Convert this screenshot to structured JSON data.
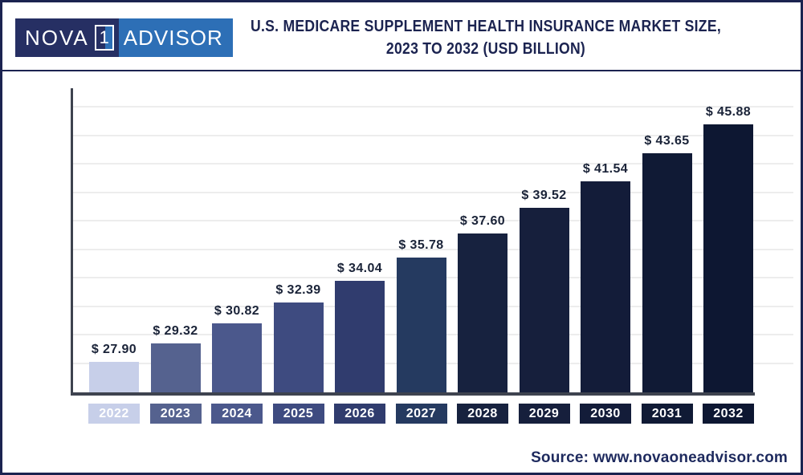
{
  "header": {
    "logo": {
      "part1": "NOVA",
      "part2": "1",
      "part3": "ADVISOR"
    },
    "title_lines": [
      "U.S. MEDICARE SUPPLEMENT HEALTH INSURANCE MARKET SIZE,",
      "2023 TO 2032 (USD BILLION)"
    ]
  },
  "footer": {
    "source": "Source: www.novaoneadvisor.com"
  },
  "colors": {
    "navy": "#1b2350",
    "logo_navy": "#262f63",
    "logo_blue": "#2d6fb6",
    "axis": "#3e434f",
    "grid": "#ededed",
    "value_label": "#1a2338"
  },
  "chart_data": {
    "type": "bar",
    "title": "U.S. Medicare Supplement Health Insurance Market Size, 2023 to 2032 (USD Billion)",
    "unit": "USD Billion",
    "categories": [
      "2022",
      "2023",
      "2024",
      "2025",
      "2026",
      "2027",
      "2028",
      "2029",
      "2030",
      "2031",
      "2032"
    ],
    "values": [
      27.9,
      29.32,
      30.82,
      32.39,
      34.04,
      35.78,
      37.6,
      39.52,
      41.54,
      43.65,
      45.88
    ],
    "value_prefix": "$ ",
    "ylim": [
      25.6,
      48.4
    ],
    "grid": true,
    "gridline_count": 10,
    "legend": false,
    "bar_colors": [
      "#c7cfe9",
      "#55628f",
      "#4b588c",
      "#3e4b80",
      "#303c6e",
      "#253a60",
      "#17223f",
      "#161f3c",
      "#131c39",
      "#101a35",
      "#0d1732"
    ]
  }
}
